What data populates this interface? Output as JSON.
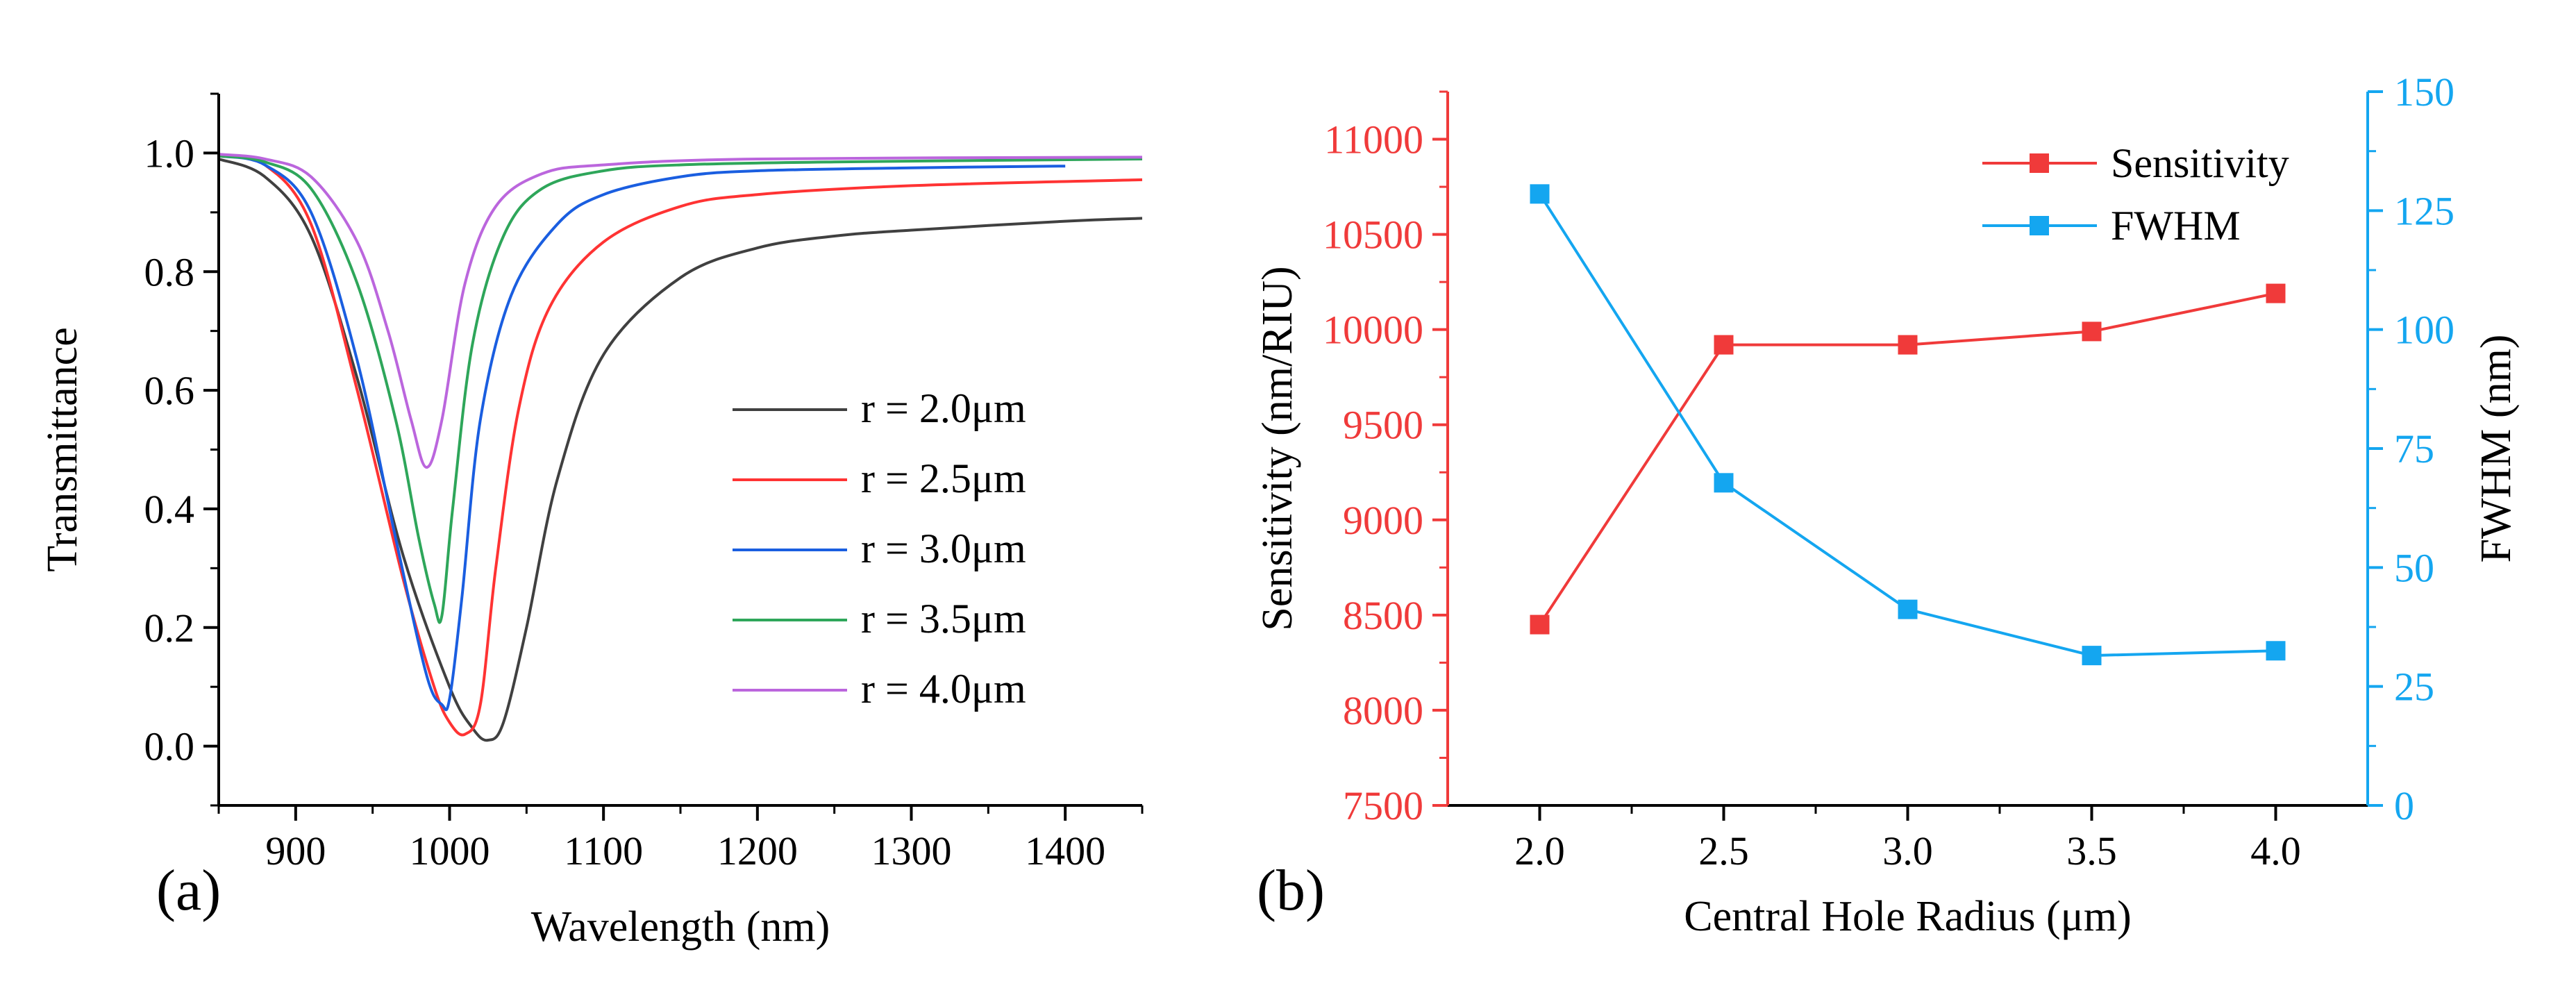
{
  "chart_data": [
    {
      "panel": "(a)",
      "type": "line",
      "xlabel": "Wavelength (nm)",
      "ylabel": "Transmittance",
      "xlim": [
        850,
        1450
      ],
      "ylim": [
        -0.1,
        1.1
      ],
      "xticks": [
        "900",
        "1000",
        "1100",
        "1200",
        "1300",
        "1400"
      ],
      "yticks": [
        "0.0",
        "0.2",
        "0.4",
        "0.6",
        "0.8",
        "1.0"
      ],
      "legend_position": "right",
      "series": [
        {
          "name": "r = 2.0μm",
          "color": "#404040",
          "x": [
            850,
            880,
            910,
            940,
            970,
            1000,
            1015,
            1025,
            1035,
            1050,
            1070,
            1100,
            1150,
            1200,
            1250,
            1300,
            1400,
            1450
          ],
          "y": [
            0.99,
            0.96,
            0.86,
            0.62,
            0.32,
            0.1,
            0.03,
            0.01,
            0.04,
            0.2,
            0.45,
            0.66,
            0.79,
            0.84,
            0.86,
            0.87,
            0.885,
            0.89
          ]
        },
        {
          "name": "r = 2.5μm",
          "color": "#ff3333",
          "x": [
            850,
            880,
            910,
            940,
            970,
            990,
            1000,
            1010,
            1020,
            1030,
            1045,
            1065,
            1100,
            1150,
            1200,
            1300,
            1450
          ],
          "y": [
            0.995,
            0.98,
            0.88,
            0.6,
            0.28,
            0.1,
            0.04,
            0.02,
            0.07,
            0.3,
            0.57,
            0.74,
            0.85,
            0.91,
            0.93,
            0.945,
            0.955
          ]
        },
        {
          "name": "r = 3.0μm",
          "color": "#1a5ee0",
          "x": [
            850,
            880,
            910,
            940,
            965,
            985,
            995,
            1000,
            1008,
            1020,
            1040,
            1070,
            1100,
            1150,
            1200,
            1300,
            1400
          ],
          "y": [
            0.995,
            0.98,
            0.9,
            0.65,
            0.35,
            0.12,
            0.07,
            0.08,
            0.25,
            0.55,
            0.76,
            0.88,
            0.93,
            0.96,
            0.97,
            0.975,
            0.978
          ]
        },
        {
          "name": "r = 3.5μm",
          "color": "#2ea65a",
          "x": [
            850,
            880,
            910,
            940,
            965,
            980,
            990,
            995,
            1002,
            1015,
            1035,
            1060,
            1100,
            1150,
            1250,
            1450
          ],
          "y": [
            0.995,
            0.985,
            0.94,
            0.78,
            0.55,
            0.35,
            0.24,
            0.22,
            0.4,
            0.68,
            0.86,
            0.94,
            0.97,
            0.98,
            0.985,
            0.99
          ]
        },
        {
          "name": "r = 4.0μm",
          "color": "#bb66dd",
          "x": [
            850,
            880,
            910,
            940,
            960,
            975,
            985,
            995,
            1010,
            1030,
            1060,
            1100,
            1200,
            1450
          ],
          "y": [
            0.998,
            0.99,
            0.96,
            0.85,
            0.7,
            0.55,
            0.47,
            0.55,
            0.78,
            0.91,
            0.965,
            0.98,
            0.99,
            0.993
          ]
        }
      ]
    },
    {
      "panel": "(b)",
      "type": "line",
      "xlabel": "Central Hole Radius (μm)",
      "ylabel": "Sensitivity (nm/RIU)",
      "ylabel2": "FWHM (nm)",
      "categories": [
        2.0,
        2.5,
        3.0,
        3.5,
        4.0
      ],
      "xticks": [
        "2.0",
        "2.5",
        "3.0",
        "3.5",
        "4.0"
      ],
      "xlim": [
        1.75,
        4.25
      ],
      "ylim": [
        7500,
        11250
      ],
      "yticks": [
        "7500",
        "8000",
        "8500",
        "9000",
        "9500",
        "10000",
        "10500",
        "11000"
      ],
      "y2lim": [
        0,
        150
      ],
      "y2ticks": [
        "0",
        "25",
        "50",
        "75",
        "100",
        "125",
        "150"
      ],
      "legend_position": "top-right",
      "series": [
        {
          "name": "Sensitivity",
          "axis": "left",
          "color": "#f03a3a",
          "values": [
            8450,
            9920,
            9920,
            9990,
            10190
          ]
        },
        {
          "name": "FWHM",
          "axis": "right",
          "color": "#14a6f0",
          "values": [
            128.5,
            67.8,
            41.2,
            31.5,
            32.5
          ]
        }
      ]
    }
  ],
  "text_color": "#000000",
  "axis_color": "#000000"
}
